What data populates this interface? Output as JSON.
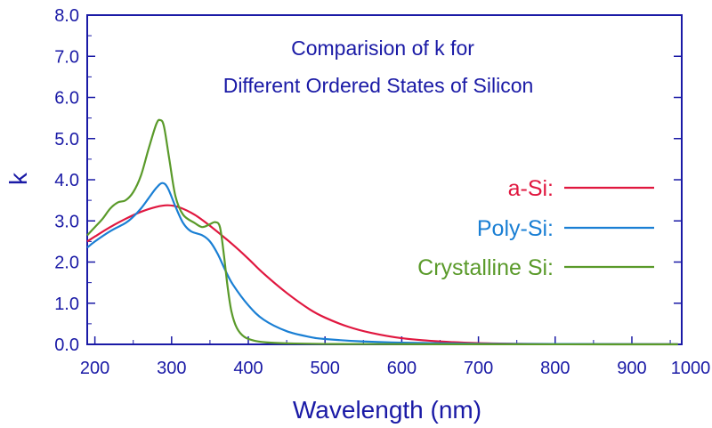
{
  "chart_data": {
    "type": "line",
    "title_lines": [
      "Comparision of k for",
      "Different Ordered States of Silicon"
    ],
    "xlabel": "Wavelength (nm)",
    "ylabel": "k",
    "xlim": [
      190,
      965
    ],
    "ylim": [
      0,
      8
    ],
    "xticks": [
      200,
      300,
      400,
      500,
      600,
      700,
      800,
      900,
      1000
    ],
    "xtick_labels": [
      "200",
      "300",
      "400",
      "500",
      "600",
      "700",
      "800",
      "900",
      "1000"
    ],
    "yticks": [
      0,
      1,
      2,
      3,
      4,
      5,
      6,
      7,
      8
    ],
    "ytick_labels": [
      "0.0",
      "1.0",
      "2.0",
      "3.0",
      "4.0",
      "5.0",
      "6.0",
      "7.0",
      "8.0"
    ],
    "grid": false,
    "legend_position": "right",
    "axis_color": "#1a1aa6",
    "series": [
      {
        "name": "a-Si:",
        "color": "#e0173f",
        "points": [
          [
            190,
            2.5
          ],
          [
            200,
            2.62
          ],
          [
            220,
            2.85
          ],
          [
            240,
            3.05
          ],
          [
            260,
            3.22
          ],
          [
            280,
            3.34
          ],
          [
            295,
            3.38
          ],
          [
            310,
            3.33
          ],
          [
            330,
            3.15
          ],
          [
            350,
            2.88
          ],
          [
            380,
            2.42
          ],
          [
            400,
            2.08
          ],
          [
            420,
            1.72
          ],
          [
            450,
            1.25
          ],
          [
            480,
            0.85
          ],
          [
            500,
            0.65
          ],
          [
            530,
            0.43
          ],
          [
            560,
            0.28
          ],
          [
            600,
            0.15
          ],
          [
            650,
            0.07
          ],
          [
            700,
            0.03
          ],
          [
            750,
            0.015
          ],
          [
            800,
            0.008
          ],
          [
            900,
            0.003
          ],
          [
            960,
            0.002
          ]
        ]
      },
      {
        "name": "Poly-Si:",
        "color": "#1a7fd4",
        "points": [
          [
            190,
            2.35
          ],
          [
            200,
            2.5
          ],
          [
            220,
            2.75
          ],
          [
            240,
            2.95
          ],
          [
            250,
            3.1
          ],
          [
            260,
            3.3
          ],
          [
            270,
            3.55
          ],
          [
            280,
            3.8
          ],
          [
            288,
            3.92
          ],
          [
            295,
            3.8
          ],
          [
            305,
            3.35
          ],
          [
            315,
            2.95
          ],
          [
            325,
            2.75
          ],
          [
            340,
            2.65
          ],
          [
            350,
            2.5
          ],
          [
            360,
            2.2
          ],
          [
            370,
            1.8
          ],
          [
            380,
            1.45
          ],
          [
            400,
            0.95
          ],
          [
            420,
            0.6
          ],
          [
            450,
            0.32
          ],
          [
            480,
            0.18
          ],
          [
            500,
            0.13
          ],
          [
            550,
            0.07
          ],
          [
            600,
            0.04
          ],
          [
            700,
            0.015
          ],
          [
            800,
            0.008
          ],
          [
            960,
            0.003
          ]
        ]
      },
      {
        "name": "Crystalline Si:",
        "color": "#5a9a2a",
        "points": [
          [
            190,
            2.65
          ],
          [
            200,
            2.85
          ],
          [
            210,
            3.05
          ],
          [
            220,
            3.3
          ],
          [
            230,
            3.45
          ],
          [
            240,
            3.5
          ],
          [
            250,
            3.7
          ],
          [
            260,
            4.1
          ],
          [
            270,
            4.75
          ],
          [
            280,
            5.35
          ],
          [
            285,
            5.45
          ],
          [
            290,
            5.3
          ],
          [
            297,
            4.5
          ],
          [
            305,
            3.6
          ],
          [
            315,
            3.15
          ],
          [
            330,
            2.95
          ],
          [
            340,
            2.85
          ],
          [
            350,
            2.92
          ],
          [
            357,
            2.97
          ],
          [
            363,
            2.85
          ],
          [
            368,
            2.2
          ],
          [
            373,
            1.4
          ],
          [
            378,
            0.8
          ],
          [
            385,
            0.4
          ],
          [
            395,
            0.18
          ],
          [
            410,
            0.08
          ],
          [
            430,
            0.04
          ],
          [
            460,
            0.02
          ],
          [
            500,
            0.01
          ],
          [
            600,
            0.005
          ],
          [
            700,
            0.002
          ],
          [
            800,
            0.001
          ],
          [
            960,
            0.0005
          ]
        ]
      }
    ]
  }
}
